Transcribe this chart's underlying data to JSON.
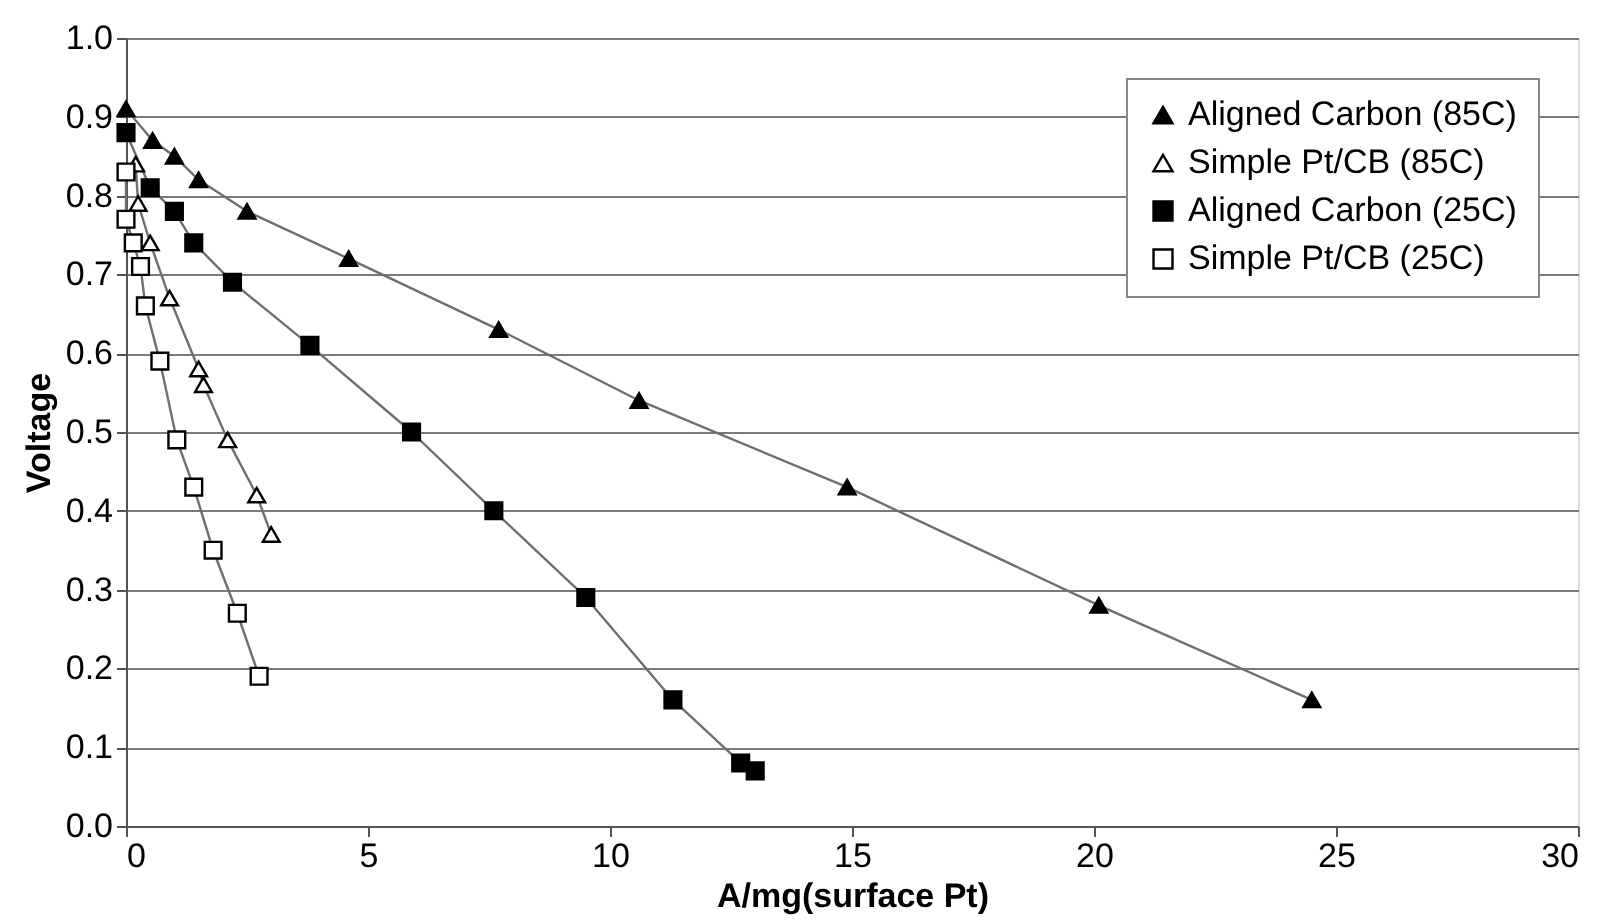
{
  "chart_data": {
    "type": "line",
    "xlabel": "A/mg(surface Pt)",
    "ylabel": "Voltage",
    "xlim": [
      0,
      30
    ],
    "xticks": [
      0,
      5,
      10,
      15,
      20,
      25,
      30
    ],
    "ylim": [
      0,
      1
    ],
    "yticks": [
      {
        "value": 0,
        "label": "0.0"
      },
      {
        "value": 0.1,
        "label": "0.1"
      },
      {
        "value": 0.2,
        "label": "0.2"
      },
      {
        "value": 0.3,
        "label": "0.3"
      },
      {
        "value": 0.4,
        "label": "0.4"
      },
      {
        "value": 0.5,
        "label": "0.5"
      },
      {
        "value": 0.6,
        "label": "0.6"
      },
      {
        "value": 0.7,
        "label": "0.7"
      },
      {
        "value": 0.8,
        "label": "0.8"
      },
      {
        "value": 0.9,
        "label": "0.9"
      },
      {
        "value": 1,
        "label": "1.0"
      }
    ],
    "grid": "y",
    "legend": "top right",
    "line_style": "solid",
    "series": [
      {
        "name": "Aligned Carbon (85C)",
        "color": "#000000",
        "marker": "triangle",
        "x": [
          0,
          0.55,
          1.0,
          1.5,
          2.5,
          4.6,
          7.7,
          10.6,
          14.9,
          20.1,
          24.5
        ],
        "values": [
          0.91,
          0.87,
          0.85,
          0.82,
          0.78,
          0.72,
          0.63,
          0.54,
          0.43,
          0.28,
          0.16
        ]
      },
      {
        "name": "Simple Pt/CB (85C)",
        "color": "#ffffff",
        "marker": "triangle",
        "x": [
          0.2,
          0.25,
          0.5,
          0.9,
          1.5,
          1.6,
          2.1,
          2.7,
          3.0
        ],
        "values": [
          0.84,
          0.79,
          0.74,
          0.67,
          0.58,
          0.56,
          0.49,
          0.42,
          0.37
        ]
      },
      {
        "name": "Aligned Carbon (25C)",
        "color": "#000000",
        "marker": "square",
        "x": [
          0,
          0.5,
          1.0,
          1.4,
          2.2,
          3.8,
          5.9,
          7.6,
          9.5,
          11.3,
          12.7,
          13.0
        ],
        "values": [
          0.88,
          0.81,
          0.78,
          0.74,
          0.69,
          0.61,
          0.5,
          0.4,
          0.29,
          0.16,
          0.08,
          0.07
        ]
      },
      {
        "name": "Simple Pt/CB (25C)",
        "color": "#ffffff",
        "marker": "square",
        "x": [
          0,
          0,
          0.15,
          0.3,
          0.4,
          0.7,
          1.05,
          1.4,
          1.8,
          2.3,
          2.75
        ],
        "values": [
          0.83,
          0.77,
          0.74,
          0.71,
          0.66,
          0.59,
          0.49,
          0.43,
          0.35,
          0.27,
          0.19
        ]
      }
    ]
  }
}
